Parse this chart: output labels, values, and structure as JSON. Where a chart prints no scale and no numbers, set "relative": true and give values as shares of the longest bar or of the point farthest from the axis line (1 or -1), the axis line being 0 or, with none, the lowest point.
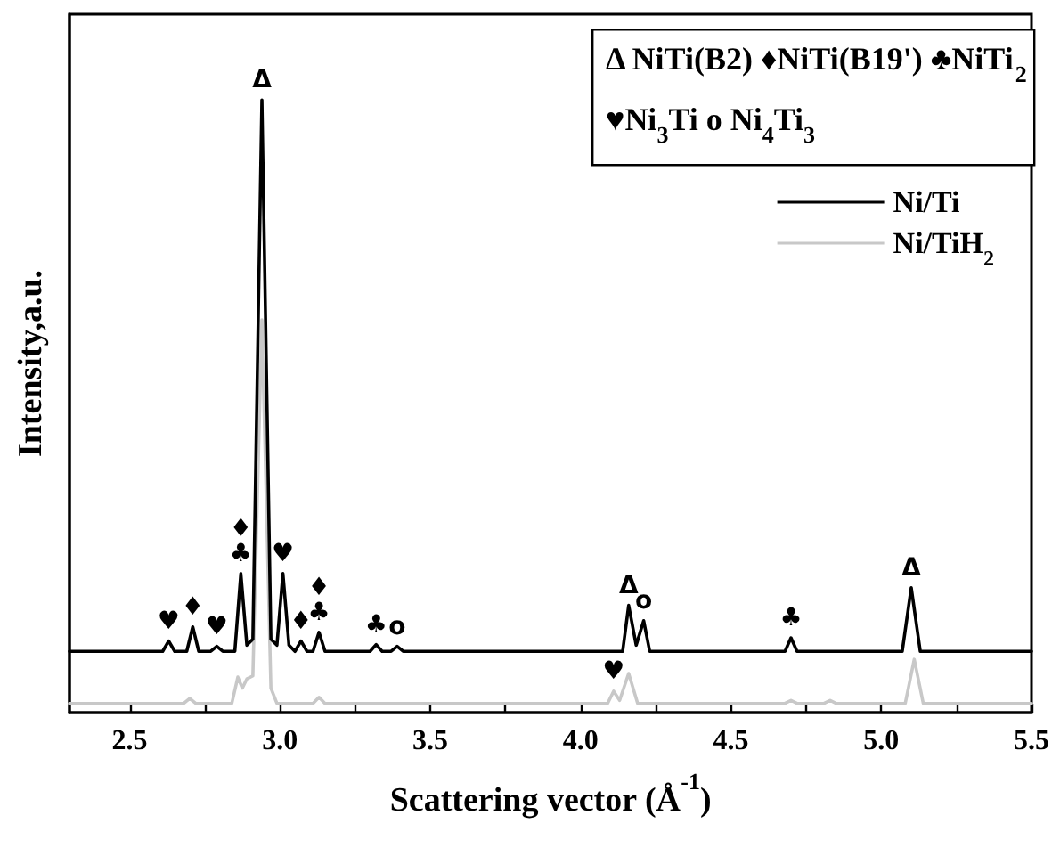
{
  "chart_data": {
    "type": "line",
    "relative": true,
    "xlabel": "Scattering vector (Å$^{-1}$)",
    "ylabel": "Intensity,a.u.",
    "xlim": [
      2.3,
      5.5
    ],
    "xticks": [
      2.5,
      {
        "value": 2.75,
        "label": null
      },
      {
        "value": 3.0,
        "label": "3.0"
      },
      {
        "value": 3.25,
        "label": null
      },
      3.5,
      {
        "value": 3.75,
        "label": null
      },
      {
        "value": 4.0,
        "label": "4.0"
      },
      {
        "value": 4.25,
        "label": null
      },
      4.5,
      {
        "value": 4.75,
        "label": null
      },
      {
        "value": 5.0,
        "label": "5.0"
      },
      {
        "value": 5.25,
        "label": null
      },
      5.5
    ],
    "tick_labels": "x",
    "grid": false,
    "legend": "top right",
    "marker": "none",
    "line_style": "solid",
    "series": [
      {
        "name": "Ni/Ti",
        "color": "#000000",
        "x": [
          2.3,
          2.61,
          2.63,
          2.65,
          2.69,
          2.71,
          2.73,
          2.77,
          2.79,
          2.81,
          2.85,
          2.87,
          2.89,
          2.91,
          2.94,
          2.97,
          2.99,
          3.01,
          3.03,
          3.05,
          3.07,
          3.09,
          3.11,
          3.13,
          3.15,
          3.3,
          3.32,
          3.34,
          3.37,
          3.39,
          3.41,
          4.14,
          4.16,
          4.185,
          4.21,
          4.23,
          4.68,
          4.7,
          4.72,
          5.07,
          5.1,
          5.13,
          5.5
        ],
        "values": [
          0.1,
          0.1,
          0.117,
          0.1,
          0.1,
          0.14,
          0.1,
          0.1,
          0.108,
          0.1,
          0.1,
          0.227,
          0.11,
          0.12,
          1.0,
          0.12,
          0.11,
          0.227,
          0.11,
          0.1,
          0.117,
          0.1,
          0.1,
          0.131,
          0.1,
          0.1,
          0.111,
          0.1,
          0.1,
          0.108,
          0.1,
          0.1,
          0.175,
          0.11,
          0.15,
          0.1,
          0.1,
          0.122,
          0.1,
          0.1,
          0.204,
          0.1,
          0.1
        ]
      },
      {
        "name": "Ni/TiH$_{2}$",
        "color": "#c8c8c8",
        "x": [
          2.3,
          2.68,
          2.7,
          2.72,
          2.84,
          2.86,
          2.875,
          2.89,
          2.91,
          2.94,
          2.97,
          2.99,
          3.11,
          3.13,
          3.15,
          4.09,
          4.11,
          4.13,
          4.16,
          4.19,
          4.68,
          4.7,
          4.72,
          4.81,
          4.83,
          4.85,
          5.08,
          5.11,
          5.14,
          5.5
        ],
        "values": [
          0.015,
          0.015,
          0.023,
          0.015,
          0.015,
          0.058,
          0.04,
          0.055,
          0.06,
          0.641,
          0.04,
          0.015,
          0.015,
          0.025,
          0.015,
          0.015,
          0.035,
          0.02,
          0.064,
          0.015,
          0.015,
          0.02,
          0.015,
          0.015,
          0.02,
          0.015,
          0.015,
          0.087,
          0.015,
          0.015
        ]
      }
    ],
    "annotations": [
      "Δ NiTi(B2) ♦NiTi(B19') ♣NiTi$_{2}$",
      "♥Ni$_{3}$Ti o Ni$_{4}$Ti$_{3}$",
      {
        "text": "Δ",
        "x": 2.94,
        "y": 1.0
      },
      {
        "text": "♥",
        "x": 2.63,
        "y": 0.117
      },
      {
        "text": "♦",
        "x": 2.71,
        "y": 0.14
      },
      {
        "text": "♥",
        "x": 2.79,
        "y": 0.108
      },
      {
        "text": "♦",
        "x": 2.87,
        "y": 0.227
      },
      {
        "text": "♣",
        "x": 2.87,
        "y": 0.227
      },
      {
        "text": "♥",
        "x": 3.01,
        "y": 0.227
      },
      {
        "text": "♦",
        "x": 3.07,
        "y": 0.117
      },
      {
        "text": "♦",
        "x": 3.13,
        "y": 0.131
      },
      {
        "text": "♣",
        "x": 3.13,
        "y": 0.131
      },
      {
        "text": "♣",
        "x": 3.32,
        "y": 0.111
      },
      {
        "text": "o",
        "x": 3.39,
        "y": 0.108
      },
      {
        "text": "♥",
        "x": 4.11,
        "y": 0.035
      },
      {
        "text": "Δ",
        "x": 4.16,
        "y": 0.175
      },
      {
        "text": "o",
        "x": 4.21,
        "y": 0.15
      },
      {
        "text": "♣",
        "x": 4.7,
        "y": 0.122
      },
      {
        "text": "Δ",
        "x": 5.1,
        "y": 0.204
      }
    ]
  }
}
